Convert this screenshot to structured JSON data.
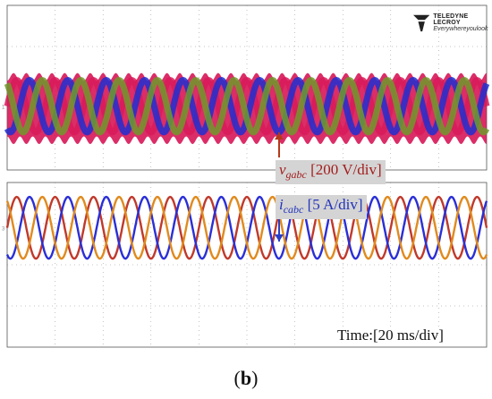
{
  "logo": {
    "brand": "TELEDYNE LECROY",
    "tagline": "Everywhereyoulook"
  },
  "caption": {
    "open": "(",
    "letter": "b",
    "close": ")"
  },
  "time_label": "Time:[20 ms/div]",
  "colors": {
    "phase_a_voltage": "#d81b5a",
    "phase_b_voltage": "#1f2fd0",
    "phase_c_voltage": "#6f9a2a",
    "phase_a_current": "#c0392b",
    "phase_b_current": "#2a2fd6",
    "phase_c_current": "#e08a1e",
    "grid": "#8a8a8a",
    "v_arrow": "#b33a1a",
    "i_arrow": "#2a3fc8"
  },
  "chart_data": [
    {
      "type": "line",
      "channel": "voltage",
      "label": "vgabc",
      "label_main": "v",
      "label_sub": "gabc",
      "scale_text": "[200 V/div]",
      "x_unit": "ms",
      "ms_per_div": 20,
      "divisions_x": 10,
      "divisions_y": 4,
      "cycles_visible": 12.5,
      "series": [
        {
          "phase": "a",
          "color": "#d81b5a",
          "phase_deg": 0
        },
        {
          "phase": "b",
          "color": "#1f2fd0",
          "phase_deg": -120
        },
        {
          "phase": "c",
          "color": "#6f9a2a",
          "phase_deg": 120
        }
      ],
      "amplitude_div": 1.15,
      "offset_div": 2.45,
      "carrier_fill": true
    },
    {
      "type": "line",
      "channel": "current",
      "label": "icabc",
      "label_main": "i",
      "label_sub": "cabc",
      "scale_text": "[5 A/div]",
      "x_unit": "ms",
      "ms_per_div": 20,
      "divisions_x": 10,
      "divisions_y": 4,
      "cycles_visible": 12.5,
      "series": [
        {
          "phase": "a",
          "color": "#c0392b",
          "phase_deg": 0
        },
        {
          "phase": "b",
          "color": "#2a2fd6",
          "phase_deg": -120
        },
        {
          "phase": "c",
          "color": "#e08a1e",
          "phase_deg": 120
        }
      ],
      "amplitude_div": 0.75,
      "offset_div": 1.1
    }
  ]
}
